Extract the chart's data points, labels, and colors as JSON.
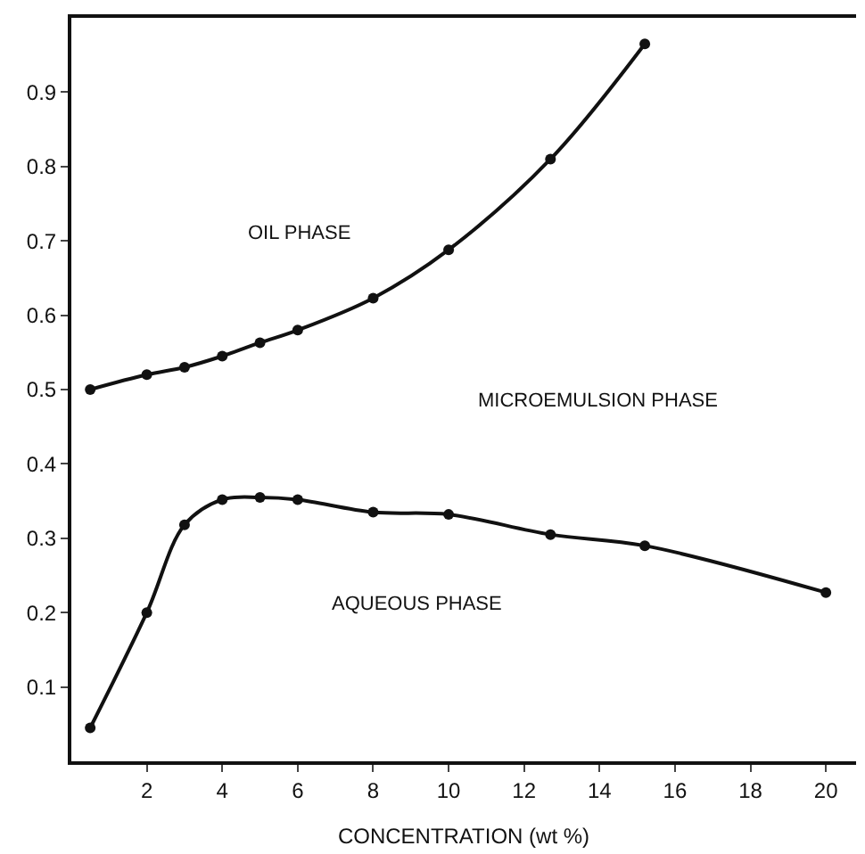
{
  "chart_data": {
    "type": "line",
    "xlabel": "CONCENTRATION (wt %)",
    "xlim": [
      0,
      20.8
    ],
    "ylim": [
      0,
      1.0
    ],
    "xticks": [
      2,
      4,
      6,
      8,
      10,
      12,
      14,
      16,
      18,
      20
    ],
    "yticks": [
      0.1,
      0.2,
      0.3,
      0.4,
      0.5,
      0.6,
      0.7,
      0.8,
      0.9
    ],
    "marker": "circle",
    "line_style": "solid",
    "series": [
      {
        "color": "#111111",
        "x": [
          0.5,
          2,
          3,
          4,
          5,
          6,
          8,
          10,
          12.7,
          15.2
        ],
        "values": [
          0.5,
          0.52,
          0.53,
          0.545,
          0.563,
          0.58,
          0.623,
          0.688,
          0.81,
          0.965
        ]
      },
      {
        "color": "#111111",
        "x": [
          0.5,
          2,
          3,
          4,
          5,
          6,
          8,
          10,
          12.7,
          15.2,
          20
        ],
        "values": [
          0.045,
          0.2,
          0.318,
          0.352,
          0.355,
          0.352,
          0.335,
          0.332,
          0.305,
          0.29,
          0.227
        ]
      }
    ],
    "annotations": [
      "OIL PHASE",
      "MICROEMULSION PHASE",
      "AQUEOUS PHASE"
    ]
  }
}
